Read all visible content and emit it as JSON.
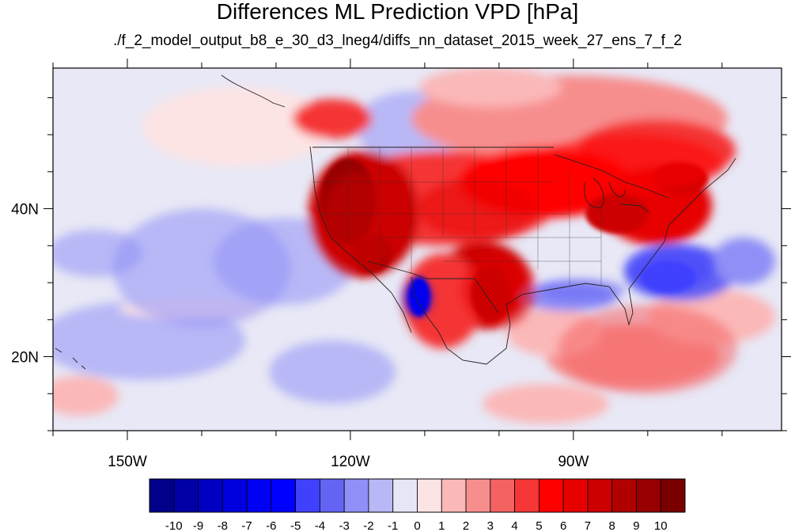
{
  "title": "Differences ML Prediction VPD [hPa]",
  "subtitle": "./f_2_model_output_b8_e_30_d3_lneg4/diffs_nn_dataset_2015_week_27_ens_7_f_2",
  "chart_data": {
    "type": "heatmap",
    "projection": "cylindrical equidistant",
    "lon_range": [
      -160,
      -62
    ],
    "lat_range": [
      10,
      59
    ],
    "x_ticks": [
      {
        "value": -150,
        "label": "150W"
      },
      {
        "value": -120,
        "label": "120W"
      },
      {
        "value": -90,
        "label": "90W"
      }
    ],
    "y_ticks": [
      {
        "value": 20,
        "label": "20N"
      },
      {
        "value": 40,
        "label": "40N"
      }
    ],
    "colorbar": {
      "levels": [
        -10,
        -9,
        -8,
        -7,
        -6,
        -5,
        -4,
        -3,
        -2,
        -1,
        0,
        1,
        2,
        3,
        4,
        5,
        6,
        7,
        8,
        9,
        10
      ],
      "level_labels": [
        "-10",
        "-9",
        "-8",
        "-7",
        "-6",
        "-5",
        "-4",
        "-3",
        "-2",
        "-1",
        "0",
        "1",
        "2",
        "3",
        "4",
        "5",
        "6",
        "7",
        "8",
        "9",
        "10"
      ],
      "colors": [
        "#00008a",
        "#0000a6",
        "#0000c2",
        "#0000de",
        "#0000f2",
        "#0000ff",
        "#4040ff",
        "#6464f4",
        "#8f8ff7",
        "#b8b8f7",
        "#e6e6f7",
        "#fde4e4",
        "#fbb8b8",
        "#f78e8e",
        "#f56262",
        "#f53636",
        "#ff0000",
        "#e60000",
        "#cc0000",
        "#b00000",
        "#960000",
        "#7a0000"
      ]
    },
    "features": [
      {
        "name": "western-us-warm",
        "value": 7.5,
        "lon": -119,
        "lat": 38,
        "rx": 5,
        "ry": 7
      },
      {
        "name": "central-plains-warm",
        "value": 6,
        "lon": -103,
        "lat": 40,
        "rx": 8,
        "ry": 4
      },
      {
        "name": "texas-warm",
        "value": 6.5,
        "lon": -100,
        "lat": 29,
        "rx": 5,
        "ry": 5
      },
      {
        "name": "great-lakes-canada-warm",
        "value": 5.5,
        "lon": -82,
        "lat": 46,
        "rx": 12,
        "ry": 4
      },
      {
        "name": "southeast-atlantic-cool",
        "value": -5,
        "lon": -77,
        "lat": 32,
        "rx": 6,
        "ry": 3
      },
      {
        "name": "gulf-of-california-cool",
        "value": -6,
        "lon": -111,
        "lat": 28,
        "rx": 2,
        "ry": 2.5
      },
      {
        "name": "gulf-of-mexico-cool",
        "value": -3.5,
        "lon": -89,
        "lat": 29,
        "rx": 6,
        "ry": 1.5
      },
      {
        "name": "east-pacific-cool",
        "value": -2.5,
        "lon": -140,
        "lat": 32,
        "rx": 12,
        "ry": 8
      },
      {
        "name": "caribbean-warm",
        "value": 3.5,
        "lon": -80,
        "lat": 21,
        "rx": 12,
        "ry": 6
      }
    ]
  }
}
